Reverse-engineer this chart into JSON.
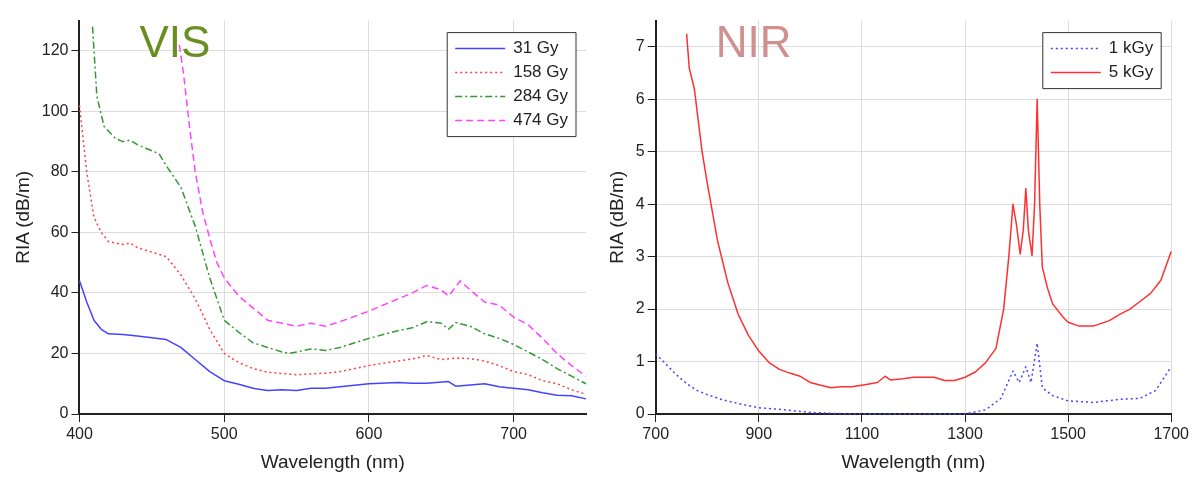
{
  "chart_data": [
    {
      "type": "line",
      "title": "VIS",
      "xlabel": "Wavelength (nm)",
      "ylabel": "RIA (dB/m)",
      "xlim": [
        400,
        750
      ],
      "xticks": [
        400,
        500,
        600,
        700
      ],
      "ylim": [
        0,
        130
      ],
      "yticks": [
        0,
        20,
        40,
        60,
        80,
        100,
        120
      ],
      "grid": true,
      "legend": "top right",
      "marker": "none",
      "series": [
        {
          "name": "31 Gy",
          "color": "#4444ff",
          "line_style": "solid",
          "x": [
            400,
            405,
            410,
            415,
            420,
            430,
            440,
            450,
            460,
            470,
            480,
            490,
            500,
            510,
            520,
            530,
            540,
            550,
            560,
            570,
            580,
            600,
            620,
            630,
            640,
            655,
            660,
            670,
            680,
            690,
            700,
            710,
            720,
            730,
            740,
            750
          ],
          "values": [
            44,
            37,
            31,
            28,
            26.5,
            26.3,
            25.8,
            25.2,
            24.6,
            22,
            18,
            14,
            11,
            9.8,
            8.5,
            7.8,
            8,
            7.8,
            8.5,
            8.5,
            9,
            10,
            10.4,
            10.2,
            10.2,
            10.7,
            9.2,
            9.6,
            10,
            9,
            8.5,
            8,
            7,
            6.2,
            6,
            5
          ]
        },
        {
          "name": "158 Gy",
          "color": "#ff4040",
          "line_style": "dotted",
          "x": [
            400,
            405,
            410,
            415,
            420,
            430,
            435,
            440,
            450,
            460,
            470,
            480,
            490,
            500,
            510,
            520,
            530,
            550,
            570,
            580,
            600,
            620,
            630,
            640,
            650,
            660,
            670,
            680,
            690,
            700,
            710,
            720,
            730,
            740,
            750
          ],
          "values": [
            102,
            80,
            65,
            60,
            57,
            56,
            56.5,
            55,
            53.5,
            52,
            46,
            38,
            28,
            20,
            17,
            15,
            13.8,
            13,
            13.5,
            14,
            16,
            17.5,
            18.2,
            19.3,
            18,
            18.5,
            18.3,
            17.5,
            16,
            14,
            13,
            11,
            10,
            8,
            6.5
          ]
        },
        {
          "name": "284 Gy",
          "color": "#339933",
          "line_style": "dashdot",
          "x": [
            409,
            412,
            417,
            425,
            430,
            435,
            440,
            450,
            455,
            460,
            470,
            480,
            490,
            500,
            510,
            520,
            530,
            540,
            545,
            550,
            560,
            570,
            580,
            600,
            620,
            630,
            640,
            650,
            655,
            660,
            670,
            680,
            690,
            700,
            710,
            720,
            730,
            740,
            750
          ],
          "values": [
            128,
            105,
            95,
            91,
            90,
            90.5,
            89,
            87,
            86,
            82,
            75,
            62,
            45,
            31,
            27,
            23.5,
            22,
            20.5,
            20,
            20.5,
            21.5,
            21,
            22,
            25,
            27.5,
            28.5,
            30.5,
            30,
            28,
            30.2,
            29,
            26.5,
            25,
            23,
            20.5,
            18,
            15,
            12.5,
            10
          ]
        },
        {
          "name": "474 Gy",
          "color": "#ff44ff",
          "line_style": "dashed",
          "x": [
            469,
            472,
            476,
            480,
            485,
            490,
            495,
            500,
            510,
            520,
            530,
            540,
            550,
            560,
            570,
            580,
            600,
            610,
            620,
            630,
            640,
            650,
            655,
            660,
            663,
            670,
            680,
            690,
            700,
            710,
            720,
            730,
            740,
            750
          ],
          "values": [
            122,
            112,
            95,
            80,
            67,
            58,
            50,
            45,
            39,
            35,
            31,
            30,
            29,
            30,
            29,
            30.5,
            34,
            36,
            38,
            40,
            42.5,
            41,
            39,
            42,
            44,
            41,
            37,
            36,
            32,
            29.5,
            25,
            20,
            16,
            12.5
          ]
        }
      ]
    },
    {
      "type": "line",
      "title": "NIR",
      "xlabel": "Wavelength (nm)",
      "ylabel": "RIA (dB/m)",
      "xlim": [
        700,
        1700
      ],
      "xticks": [
        700,
        900,
        1100,
        1300,
        1500,
        1700
      ],
      "ylim": [
        0,
        7.5
      ],
      "yticks": [
        0,
        1,
        2,
        3,
        4,
        5,
        6,
        7
      ],
      "grid": true,
      "legend": "top right",
      "marker": "none",
      "series": [
        {
          "name": "1 kGy",
          "color": "#4444ff",
          "line_style": "dotted",
          "x": [
            700,
            720,
            740,
            760,
            780,
            800,
            830,
            860,
            900,
            950,
            1000,
            1050,
            1100,
            1300,
            1340,
            1370,
            1393,
            1405,
            1418,
            1428,
            1440,
            1450,
            1470,
            1500,
            1550,
            1600,
            1640,
            1670,
            1700
          ],
          "values": [
            1.15,
            0.95,
            0.75,
            0.58,
            0.45,
            0.37,
            0.27,
            0.2,
            0.12,
            0.08,
            0.03,
            0.01,
            0,
            0,
            0.08,
            0.3,
            0.82,
            0.6,
            0.9,
            0.6,
            1.35,
            0.5,
            0.35,
            0.25,
            0.22,
            0.28,
            0.3,
            0.45,
            0.9
          ]
        },
        {
          "name": "5 kGy",
          "color": "#ff3030",
          "line_style": "solid",
          "x": [
            760,
            765,
            775,
            790,
            800,
            820,
            840,
            860,
            880,
            900,
            920,
            940,
            960,
            980,
            1000,
            1020,
            1040,
            1060,
            1080,
            1100,
            1130,
            1145,
            1155,
            1180,
            1200,
            1240,
            1260,
            1280,
            1300,
            1320,
            1340,
            1360,
            1375,
            1385,
            1393,
            1400,
            1407,
            1413,
            1418,
            1423,
            1430,
            1435,
            1440,
            1445,
            1450,
            1460,
            1470,
            1490,
            1500,
            1520,
            1550,
            1580,
            1600,
            1620,
            1640,
            1660,
            1680,
            1700
          ],
          "values": [
            7.25,
            6.6,
            6.2,
            5,
            4.4,
            3.3,
            2.5,
            1.9,
            1.5,
            1.2,
            0.98,
            0.85,
            0.78,
            0.72,
            0.6,
            0.55,
            0.5,
            0.52,
            0.52,
            0.55,
            0.6,
            0.72,
            0.65,
            0.67,
            0.7,
            0.7,
            0.64,
            0.64,
            0.7,
            0.8,
            0.98,
            1.25,
            2,
            3,
            4,
            3.6,
            3.05,
            3.5,
            4.3,
            3.5,
            3.02,
            4,
            6,
            4,
            2.8,
            2.4,
            2.1,
            1.85,
            1.75,
            1.68,
            1.68,
            1.78,
            1.9,
            2,
            2.15,
            2.3,
            2.55,
            3.1
          ]
        }
      ]
    }
  ]
}
